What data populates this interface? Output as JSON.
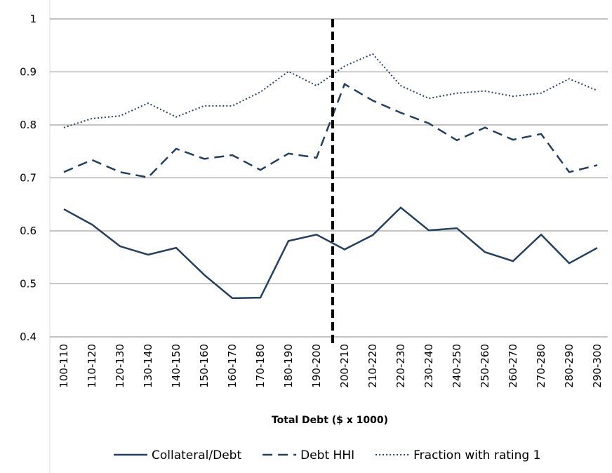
{
  "chart_data": {
    "type": "line",
    "x_label": "Total Debt ($ x 1000)",
    "categories": [
      "100-110",
      "110-120",
      "120-130",
      "130-140",
      "140-150",
      "150-160",
      "160-170",
      "170-180",
      "180-190",
      "190-200",
      "200-210",
      "210-220",
      "220-230",
      "230-240",
      "240-250",
      "250-260",
      "260-270",
      "270-280",
      "280-290",
      "290-300"
    ],
    "series": [
      {
        "name": "Collateral/Debt",
        "color": "#243f60",
        "dash": "solid",
        "values": [
          0.641,
          0.612,
          0.571,
          0.555,
          0.568,
          0.517,
          0.473,
          0.474,
          0.581,
          0.593,
          0.565,
          0.592,
          0.644,
          0.601,
          0.605,
          0.56,
          0.543,
          0.593,
          0.539,
          0.568
        ]
      },
      {
        "name": "Debt HHI",
        "color": "#243f60",
        "dash": "dashed",
        "values": [
          0.711,
          0.734,
          0.711,
          0.701,
          0.755,
          0.736,
          0.743,
          0.715,
          0.746,
          0.738,
          0.877,
          0.846,
          0.823,
          0.803,
          0.771,
          0.795,
          0.772,
          0.783,
          0.711,
          0.724
        ]
      },
      {
        "name": "Fraction with rating 1",
        "color": "#243f60",
        "dash": "dotted",
        "values": [
          0.795,
          0.812,
          0.817,
          0.841,
          0.815,
          0.836,
          0.836,
          0.862,
          0.901,
          0.874,
          0.911,
          0.934,
          0.874,
          0.85,
          0.86,
          0.864,
          0.854,
          0.86,
          0.887,
          0.865
        ]
      }
    ],
    "ylim": [
      0.4,
      1
    ],
    "yticks": [
      0.4,
      0.5,
      0.6,
      0.7,
      0.8,
      0.9,
      1
    ],
    "grid": true,
    "legend": "bottom"
  }
}
